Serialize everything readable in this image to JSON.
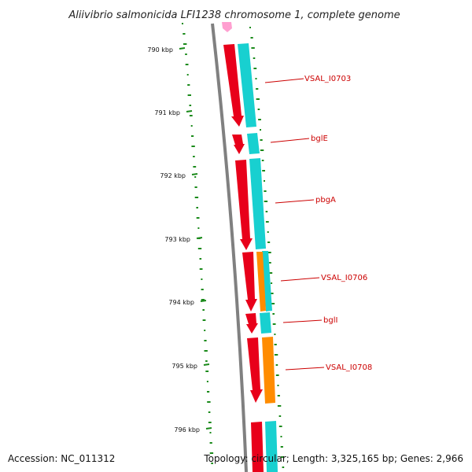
{
  "title": "Aliivibrio salmonicida LFI1238 chromosome 1, complete genome",
  "footer": {
    "accession": "Accession: NC_011312",
    "topology": "Topology: circular; Length: 3,325,165 bp; Genes: 2,966"
  },
  "colors": {
    "backbone": "#808080",
    "gc_skew_dots": "#1a8a1a",
    "forward_gene": "#e8001a",
    "reverse_gene": "#18d0d0",
    "other_gene": "#ff8c00",
    "pink_feature": "#ff9fd0",
    "label": "#cc0000",
    "leader_line": "#cc0000"
  },
  "chart_data": {
    "type": "genome-map",
    "scale_unit": "kbp",
    "scale_ticks": [
      "790 kbp",
      "791 kbp",
      "792 kbp",
      "793 kbp",
      "794 kbp",
      "795 kbp",
      "796 kbp"
    ],
    "gene_labels": [
      "VSAL_I0703",
      "bglE",
      "pbgA",
      "VSAL_I0706",
      "bglI",
      "VSAL_I0708"
    ]
  }
}
